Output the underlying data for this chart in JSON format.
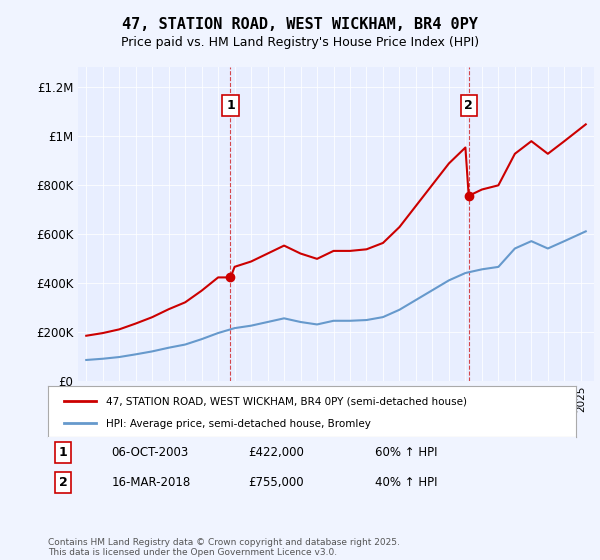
{
  "title": "47, STATION ROAD, WEST WICKHAM, BR4 0PY",
  "subtitle": "Price paid vs. HM Land Registry's House Price Index (HPI)",
  "legend_line1": "47, STATION ROAD, WEST WICKHAM, BR4 0PY (semi-detached house)",
  "legend_line2": "HPI: Average price, semi-detached house, Bromley",
  "annotation1_label": "1",
  "annotation1_date": "06-OCT-2003",
  "annotation1_price": "£422,000",
  "annotation1_hpi": "60% ↑ HPI",
  "annotation2_label": "2",
  "annotation2_date": "16-MAR-2018",
  "annotation2_price": "£755,000",
  "annotation2_hpi": "40% ↑ HPI",
  "footer": "Contains HM Land Registry data © Crown copyright and database right 2025.\nThis data is licensed under the Open Government Licence v3.0.",
  "price_color": "#cc0000",
  "hpi_color": "#6699cc",
  "annotation_vline_color": "#cc0000",
  "background_color": "#f0f4ff",
  "plot_bg_color": "#e8eeff",
  "ylabel_max": 1200000,
  "sale1_year": 2003.75,
  "sale1_price": 422000,
  "sale2_year": 2018.2,
  "sale2_price": 755000
}
